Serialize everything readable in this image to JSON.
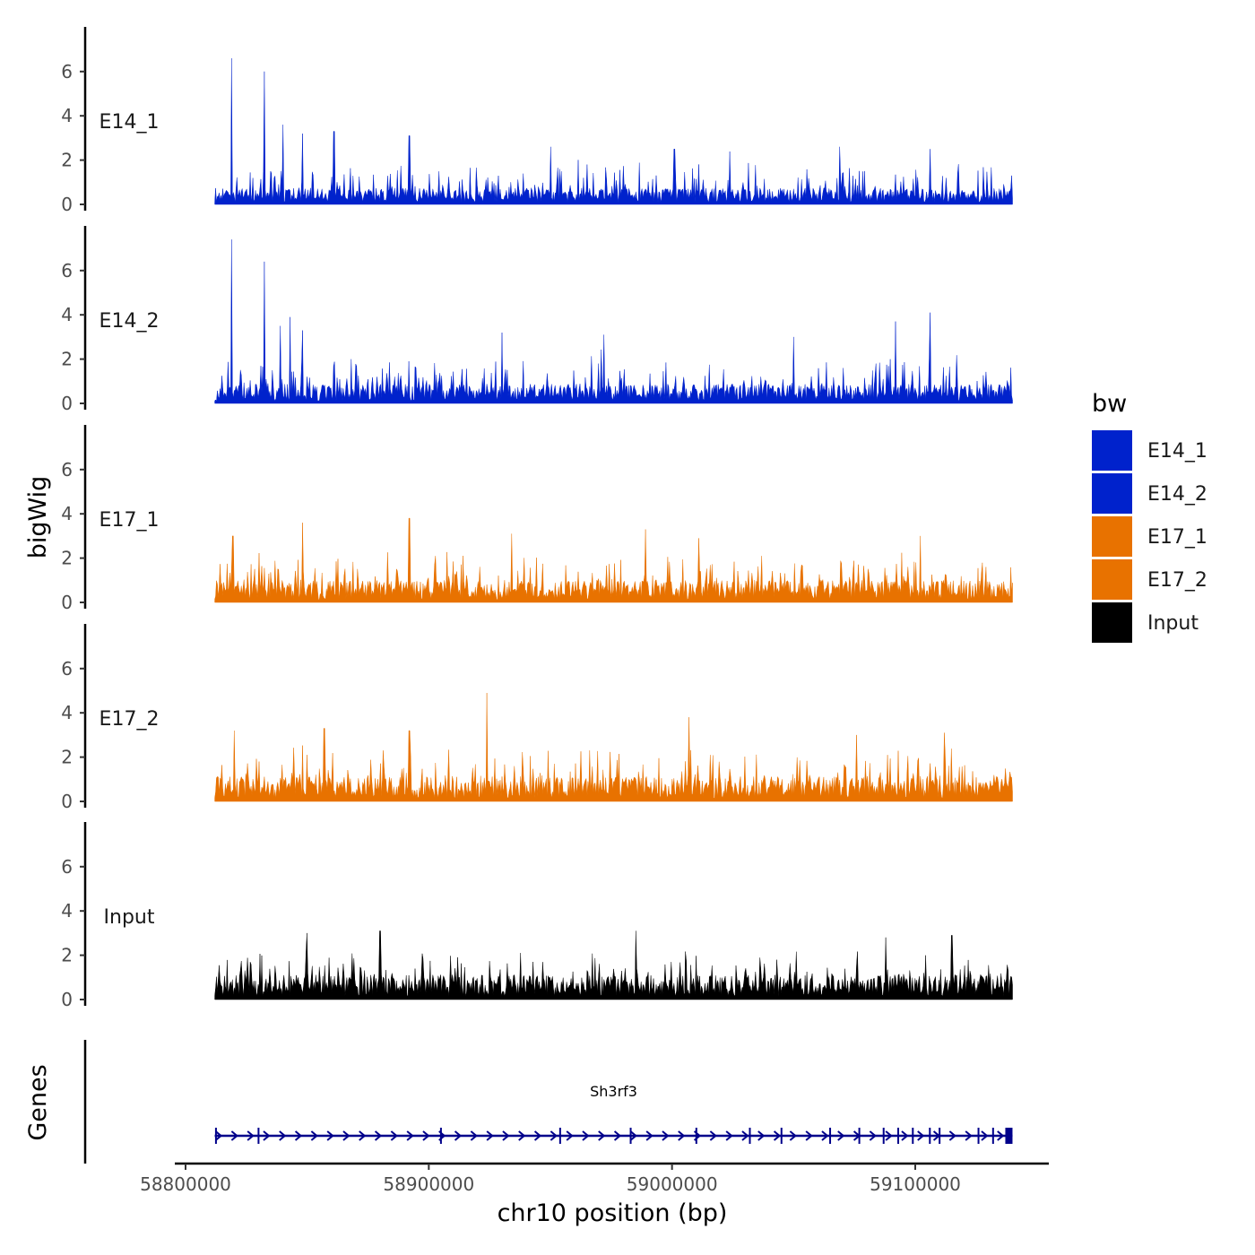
{
  "chart_data": {
    "type": "area",
    "title": "",
    "xlabel": "chr10 position (bp)",
    "ylabel": "bigWig",
    "genes_label": "Genes",
    "x_range": [
      58812000,
      59140000
    ],
    "x_axis_limits": [
      58795000,
      59150000
    ],
    "x_ticks": [
      58800000,
      58900000,
      59000000,
      59100000
    ],
    "x_tick_labels": [
      "58800000",
      "58900000",
      "59000000",
      "59100000"
    ],
    "ylim": [
      0,
      7.8
    ],
    "y_ticks": [
      0,
      2,
      4,
      6
    ],
    "y_tick_labels": [
      "0",
      "2",
      "4",
      "6"
    ],
    "legend_title": "bw",
    "legend": [
      {
        "name": "E14_1",
        "color": "#0022cc"
      },
      {
        "name": "E14_2",
        "color": "#0022cc"
      },
      {
        "name": "E17_1",
        "color": "#e87200"
      },
      {
        "name": "E17_2",
        "color": "#e87200"
      },
      {
        "name": "Input",
        "color": "#000000"
      }
    ],
    "series": [
      {
        "name": "E14_1",
        "color": "#0022cc",
        "baseline": 0.6,
        "noise": 1.3,
        "peaks": [
          [
            58819000,
            6.6
          ],
          [
            58832500,
            6.0
          ],
          [
            58840000,
            3.6
          ],
          [
            58848000,
            3.2
          ],
          [
            58861000,
            3.3
          ],
          [
            58892000,
            3.1
          ],
          [
            58950000,
            2.6
          ],
          [
            59001000,
            2.5
          ],
          [
            59069000,
            2.6
          ],
          [
            59106000,
            2.5
          ]
        ]
      },
      {
        "name": "E14_2",
        "color": "#0022cc",
        "baseline": 0.7,
        "noise": 1.4,
        "peaks": [
          [
            58819000,
            7.4
          ],
          [
            58832500,
            6.4
          ],
          [
            58839000,
            3.5
          ],
          [
            58843000,
            3.9
          ],
          [
            58848000,
            3.3
          ],
          [
            58930000,
            3.2
          ],
          [
            58972000,
            3.1
          ],
          [
            59050000,
            3.0
          ],
          [
            59092000,
            3.7
          ],
          [
            59106000,
            4.1
          ]
        ]
      },
      {
        "name": "E17_1",
        "color": "#e87200",
        "baseline": 0.8,
        "noise": 1.4,
        "peaks": [
          [
            58819500,
            3.0
          ],
          [
            58848000,
            3.6
          ],
          [
            58892000,
            3.8
          ],
          [
            58934000,
            3.1
          ],
          [
            58989000,
            3.3
          ],
          [
            59011000,
            2.9
          ],
          [
            59102000,
            3.0
          ]
        ]
      },
      {
        "name": "E17_2",
        "color": "#e87200",
        "baseline": 0.9,
        "noise": 1.5,
        "peaks": [
          [
            58820000,
            3.2
          ],
          [
            58857000,
            3.3
          ],
          [
            58892000,
            3.2
          ],
          [
            58924000,
            4.9
          ],
          [
            59007000,
            3.8
          ],
          [
            59076000,
            3.0
          ],
          [
            59112000,
            3.1
          ]
        ]
      },
      {
        "name": "Input",
        "color": "#000000",
        "baseline": 0.9,
        "noise": 1.2,
        "peaks": [
          [
            58850000,
            3.0
          ],
          [
            58880000,
            3.1
          ],
          [
            58985000,
            3.1
          ],
          [
            59088000,
            2.8
          ],
          [
            59115000,
            2.9
          ]
        ]
      }
    ],
    "genes": [
      {
        "name": "Sh3rf3",
        "start": 58812000,
        "end": 59140000,
        "strand": "+",
        "exons": [
          58812500,
          58830000,
          58905000,
          58954000,
          58983000,
          59010000,
          59032000,
          59045000,
          59065000,
          59077000,
          59087000,
          59093000,
          59099000,
          59106000,
          59110000,
          59126000,
          59132000,
          59138500
        ]
      }
    ]
  }
}
